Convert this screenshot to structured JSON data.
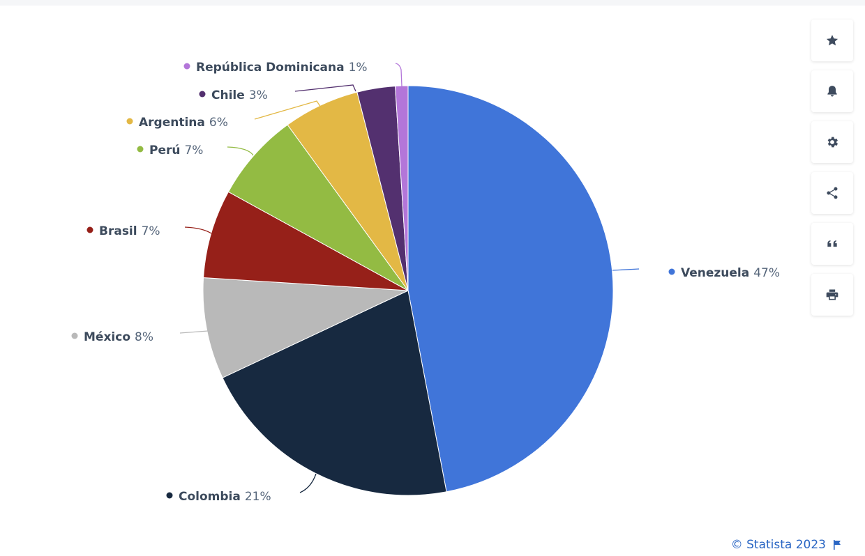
{
  "chart_data": {
    "type": "pie",
    "title": "",
    "slices": [
      {
        "label": "Venezuela",
        "value": 47,
        "value_label": "47%",
        "color": "#4075d9"
      },
      {
        "label": "Colombia",
        "value": 21,
        "value_label": "21%",
        "color": "#172940"
      },
      {
        "label": "México",
        "value": 8,
        "value_label": "8%",
        "color": "#b9b9b9"
      },
      {
        "label": "Brasil",
        "value": 7,
        "value_label": "7%",
        "color": "#962019"
      },
      {
        "label": "Perú",
        "value": 7,
        "value_label": "7%",
        "color": "#93bb43"
      },
      {
        "label": "Argentina",
        "value": 6,
        "value_label": "6%",
        "color": "#e3b845"
      },
      {
        "label": "Chile",
        "value": 3,
        "value_label": "3%",
        "color": "#53306f"
      },
      {
        "label": "República Dominicana",
        "value": 1,
        "value_label": "1%",
        "color": "#b376d9"
      }
    ],
    "start_angle": "12 o'clock",
    "direction": "clockwise",
    "legend": "none"
  },
  "toolbar": {
    "buttons": [
      {
        "name": "favorite-button",
        "icon": "star-icon"
      },
      {
        "name": "notification-button",
        "icon": "bell-icon"
      },
      {
        "name": "settings-button",
        "icon": "gear-icon"
      },
      {
        "name": "share-button",
        "icon": "share-icon"
      },
      {
        "name": "cite-button",
        "icon": "quote-icon"
      },
      {
        "name": "print-button",
        "icon": "printer-icon"
      }
    ]
  },
  "credit": {
    "text": "© Statista 2023",
    "icon": "flag-icon"
  }
}
